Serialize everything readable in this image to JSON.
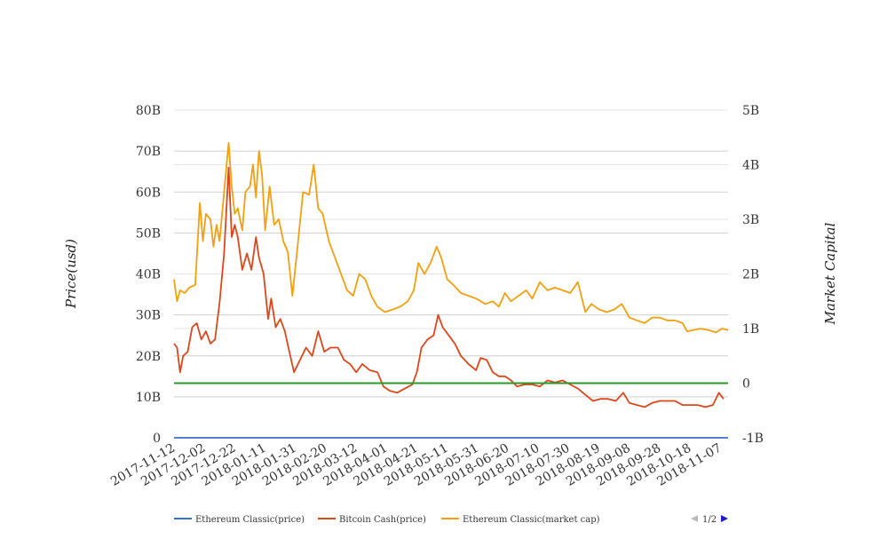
{
  "chart_data": {
    "type": "line",
    "ylabel_left": "Price(usd)",
    "ylabel_right": "Market Capital",
    "left_axis": {
      "min": 0,
      "max": 80000000000,
      "ticks": [
        "0",
        "10B",
        "20B",
        "30B",
        "40B",
        "50B",
        "60B",
        "70B",
        "80B"
      ]
    },
    "right_axis": {
      "min": -1000000000,
      "max": 5000000000,
      "ticks": [
        "-1B",
        "0",
        "1B",
        "2B",
        "3B",
        "4B",
        "5B"
      ]
    },
    "x_start": "2017-11-12",
    "x_end": "2018-11-12",
    "x_ticks": [
      "2017-11-12",
      "2017-12-02",
      "2017-12-22",
      "2018-01-11",
      "2018-01-31",
      "2018-02-20",
      "2018-03-12",
      "2018-04-01",
      "2018-04-21",
      "2018-05-11",
      "2018-05-31",
      "2018-06-20",
      "2018-07-10",
      "2018-07-30",
      "2018-08-19",
      "2018-09-08",
      "2018-09-28",
      "2018-10-18",
      "2018-11-07"
    ],
    "grid": true,
    "legend_position": "bottom",
    "series": [
      {
        "name": "Ethereum Classic(price)",
        "axis": "left",
        "color": "#3a6fce",
        "points": [
          [
            "2017-11-12",
            35
          ],
          [
            "2018-02-20",
            35
          ],
          [
            "2018-06-20",
            20
          ],
          [
            "2018-11-12",
            15
          ]
        ]
      },
      {
        "name": "Bitcoin Cash(price)",
        "axis": "left",
        "color": "#d8481c",
        "points": [
          [
            "2017-11-12",
            23000000000.0
          ],
          [
            "2017-11-14",
            22000000000.0
          ],
          [
            "2017-11-16",
            16000000000.0
          ],
          [
            "2017-11-18",
            20000000000.0
          ],
          [
            "2017-11-21",
            21000000000.0
          ],
          [
            "2017-11-24",
            27000000000.0
          ],
          [
            "2017-11-27",
            28000000000.0
          ],
          [
            "2017-11-30",
            24000000000.0
          ],
          [
            "2017-12-03",
            26000000000.0
          ],
          [
            "2017-12-06",
            23000000000.0
          ],
          [
            "2017-12-09",
            24000000000.0
          ],
          [
            "2017-12-12",
            33000000000.0
          ],
          [
            "2017-12-15",
            45000000000.0
          ],
          [
            "2017-12-18",
            66000000000.0
          ],
          [
            "2017-12-20",
            49000000000.0
          ],
          [
            "2017-12-22",
            52000000000.0
          ],
          [
            "2017-12-24",
            49000000000.0
          ],
          [
            "2017-12-27",
            41000000000.0
          ],
          [
            "2017-12-30",
            45000000000.0
          ],
          [
            "2018-01-02",
            41000000000.0
          ],
          [
            "2018-01-05",
            49000000000.0
          ],
          [
            "2018-01-07",
            44000000000.0
          ],
          [
            "2018-01-10",
            40000000000.0
          ],
          [
            "2018-01-13",
            29000000000.0
          ],
          [
            "2018-01-15",
            34000000000.0
          ],
          [
            "2018-01-18",
            27000000000.0
          ],
          [
            "2018-01-21",
            29000000000.0
          ],
          [
            "2018-01-24",
            26000000000.0
          ],
          [
            "2018-01-27",
            21000000000.0
          ],
          [
            "2018-01-30",
            16000000000.0
          ],
          [
            "2018-02-03",
            19000000000.0
          ],
          [
            "2018-02-07",
            22000000000.0
          ],
          [
            "2018-02-11",
            20000000000.0
          ],
          [
            "2018-02-15",
            26000000000.0
          ],
          [
            "2018-02-19",
            21000000000.0
          ],
          [
            "2018-02-23",
            22000000000.0
          ],
          [
            "2018-02-28",
            22000000000.0
          ],
          [
            "2018-03-04",
            19000000000.0
          ],
          [
            "2018-03-08",
            18000000000.0
          ],
          [
            "2018-03-12",
            16000000000.0
          ],
          [
            "2018-03-16",
            18000000000.0
          ],
          [
            "2018-03-21",
            16500000000.0
          ],
          [
            "2018-03-26",
            16000000000.0
          ],
          [
            "2018-03-30",
            12500000000.0
          ],
          [
            "2018-04-03",
            11500000000.0
          ],
          [
            "2018-04-08",
            11000000000.0
          ],
          [
            "2018-04-13",
            12000000000.0
          ],
          [
            "2018-04-18",
            13000000000.0
          ],
          [
            "2018-04-21",
            16000000000.0
          ],
          [
            "2018-04-24",
            22000000000.0
          ],
          [
            "2018-04-28",
            24000000000.0
          ],
          [
            "2018-05-02",
            25000000000.0
          ],
          [
            "2018-05-05",
            30000000000.0
          ],
          [
            "2018-05-08",
            27000000000.0
          ],
          [
            "2018-05-12",
            25000000000.0
          ],
          [
            "2018-05-16",
            23000000000.0
          ],
          [
            "2018-05-20",
            20000000000.0
          ],
          [
            "2018-05-25",
            18000000000.0
          ],
          [
            "2018-05-30",
            16500000000.0
          ],
          [
            "2018-06-02",
            19500000000.0
          ],
          [
            "2018-06-06",
            19000000000.0
          ],
          [
            "2018-06-10",
            16000000000.0
          ],
          [
            "2018-06-14",
            15000000000.0
          ],
          [
            "2018-06-18",
            15000000000.0
          ],
          [
            "2018-06-22",
            14000000000.0
          ],
          [
            "2018-06-26",
            12500000000.0
          ],
          [
            "2018-07-01",
            13000000000.0
          ],
          [
            "2018-07-06",
            13000000000.0
          ],
          [
            "2018-07-11",
            12500000000.0
          ],
          [
            "2018-07-16",
            14000000000.0
          ],
          [
            "2018-07-21",
            13500000000.0
          ],
          [
            "2018-07-26",
            14000000000.0
          ],
          [
            "2018-07-31",
            13000000000.0
          ],
          [
            "2018-08-05",
            12000000000.0
          ],
          [
            "2018-08-10",
            10500000000.0
          ],
          [
            "2018-08-15",
            9000000000.0
          ],
          [
            "2018-08-20",
            9500000000.0
          ],
          [
            "2018-08-25",
            9500000000.0
          ],
          [
            "2018-08-30",
            9000000000.0
          ],
          [
            "2018-09-04",
            11000000000.0
          ],
          [
            "2018-09-08",
            8500000000.0
          ],
          [
            "2018-09-13",
            8000000000.0
          ],
          [
            "2018-09-18",
            7500000000.0
          ],
          [
            "2018-09-23",
            8500000000.0
          ],
          [
            "2018-09-28",
            9000000000.0
          ],
          [
            "2018-10-03",
            9000000000.0
          ],
          [
            "2018-10-08",
            9000000000.0
          ],
          [
            "2018-10-13",
            8000000000.0
          ],
          [
            "2018-10-18",
            8000000000.0
          ],
          [
            "2018-10-23",
            8000000000.0
          ],
          [
            "2018-10-28",
            7500000000.0
          ],
          [
            "2018-11-02",
            8000000000.0
          ],
          [
            "2018-11-06",
            11000000000.0
          ],
          [
            "2018-11-09",
            9500000000.0
          ]
        ]
      },
      {
        "name": "Ethereum Classic(market cap)",
        "axis": "right",
        "color": "#f0a010",
        "points": [
          [
            "2017-11-12",
            1900000000.0
          ],
          [
            "2017-11-14",
            1500000000.0
          ],
          [
            "2017-11-16",
            1700000000.0
          ],
          [
            "2017-11-19",
            1650000000.0
          ],
          [
            "2017-11-22",
            1750000000.0
          ],
          [
            "2017-11-26",
            1800000000.0
          ],
          [
            "2017-11-29",
            3300000000.0
          ],
          [
            "2017-12-01",
            2600000000.0
          ],
          [
            "2017-12-03",
            3100000000.0
          ],
          [
            "2017-12-06",
            3000000000.0
          ],
          [
            "2017-12-08",
            2500000000.0
          ],
          [
            "2017-12-10",
            2900000000.0
          ],
          [
            "2017-12-12",
            2600000000.0
          ],
          [
            "2017-12-15",
            3500000000.0
          ],
          [
            "2017-12-18",
            4400000000.0
          ],
          [
            "2017-12-20",
            3600000000.0
          ],
          [
            "2017-12-22",
            3100000000.0
          ],
          [
            "2017-12-24",
            3200000000.0
          ],
          [
            "2017-12-27",
            2800000000.0
          ],
          [
            "2017-12-29",
            3500000000.0
          ],
          [
            "2018-01-01",
            3600000000.0
          ],
          [
            "2018-01-03",
            4000000000.0
          ],
          [
            "2018-01-05",
            3400000000.0
          ],
          [
            "2018-01-07",
            4250000000.0
          ],
          [
            "2018-01-09",
            3800000000.0
          ],
          [
            "2018-01-11",
            2800000000.0
          ],
          [
            "2018-01-14",
            3600000000.0
          ],
          [
            "2018-01-17",
            2900000000.0
          ],
          [
            "2018-01-20",
            3000000000.0
          ],
          [
            "2018-01-23",
            2600000000.0
          ],
          [
            "2018-01-26",
            2400000000.0
          ],
          [
            "2018-01-29",
            1600000000.0
          ],
          [
            "2018-02-01",
            2400000000.0
          ],
          [
            "2018-02-05",
            3500000000.0
          ],
          [
            "2018-02-09",
            3450000000.0
          ],
          [
            "2018-02-12",
            4000000000.0
          ],
          [
            "2018-02-15",
            3200000000.0
          ],
          [
            "2018-02-18",
            3100000000.0
          ],
          [
            "2018-02-22",
            2600000000.0
          ],
          [
            "2018-02-26",
            2300000000.0
          ],
          [
            "2018-03-02",
            2000000000.0
          ],
          [
            "2018-03-06",
            1700000000.0
          ],
          [
            "2018-03-10",
            1600000000.0
          ],
          [
            "2018-03-14",
            2000000000.0
          ],
          [
            "2018-03-18",
            1900000000.0
          ],
          [
            "2018-03-22",
            1600000000.0
          ],
          [
            "2018-03-26",
            1400000000.0
          ],
          [
            "2018-03-31",
            1300000000.0
          ],
          [
            "2018-04-05",
            1350000000.0
          ],
          [
            "2018-04-10",
            1400000000.0
          ],
          [
            "2018-04-15",
            1500000000.0
          ],
          [
            "2018-04-19",
            1700000000.0
          ],
          [
            "2018-04-22",
            2200000000.0
          ],
          [
            "2018-04-26",
            2000000000.0
          ],
          [
            "2018-04-30",
            2200000000.0
          ],
          [
            "2018-05-04",
            2500000000.0
          ],
          [
            "2018-05-07",
            2300000000.0
          ],
          [
            "2018-05-11",
            1900000000.0
          ],
          [
            "2018-05-15",
            1800000000.0
          ],
          [
            "2018-05-20",
            1650000000.0
          ],
          [
            "2018-05-25",
            1600000000.0
          ],
          [
            "2018-05-30",
            1550000000.0
          ],
          [
            "2018-06-05",
            1450000000.0
          ],
          [
            "2018-06-10",
            1500000000.0
          ],
          [
            "2018-06-14",
            1400000000.0
          ],
          [
            "2018-06-18",
            1650000000.0
          ],
          [
            "2018-06-22",
            1500000000.0
          ],
          [
            "2018-06-27",
            1600000000.0
          ],
          [
            "2018-07-02",
            1700000000.0
          ],
          [
            "2018-07-06",
            1550000000.0
          ],
          [
            "2018-07-11",
            1850000000.0
          ],
          [
            "2018-07-16",
            1700000000.0
          ],
          [
            "2018-07-21",
            1750000000.0
          ],
          [
            "2018-07-26",
            1700000000.0
          ],
          [
            "2018-07-31",
            1650000000.0
          ],
          [
            "2018-08-05",
            1850000000.0
          ],
          [
            "2018-08-10",
            1300000000.0
          ],
          [
            "2018-08-14",
            1450000000.0
          ],
          [
            "2018-08-19",
            1350000000.0
          ],
          [
            "2018-08-24",
            1300000000.0
          ],
          [
            "2018-08-29",
            1350000000.0
          ],
          [
            "2018-09-03",
            1450000000.0
          ],
          [
            "2018-09-08",
            1200000000.0
          ],
          [
            "2018-09-13",
            1150000000.0
          ],
          [
            "2018-09-18",
            1100000000.0
          ],
          [
            "2018-09-23",
            1200000000.0
          ],
          [
            "2018-09-28",
            1200000000.0
          ],
          [
            "2018-10-03",
            1150000000.0
          ],
          [
            "2018-10-08",
            1150000000.0
          ],
          [
            "2018-10-13",
            1100000000.0
          ],
          [
            "2018-10-16",
            950000000.0
          ],
          [
            "2018-10-20",
            970000000.0
          ],
          [
            "2018-10-25",
            1000000000.0
          ],
          [
            "2018-10-30",
            970000000.0
          ],
          [
            "2018-11-04",
            930000000.0
          ],
          [
            "2018-11-08",
            1000000000.0
          ],
          [
            "2018-11-12",
            970000000.0
          ]
        ]
      },
      {
        "axis": "right",
        "color": "#2a9a2a",
        "points": [
          [
            "2017-11-12",
            0
          ],
          [
            "2018-11-12",
            0
          ]
        ]
      }
    ]
  },
  "legend": {
    "items": [
      {
        "label": "Ethereum Classic(price)",
        "color": "#3a6fce"
      },
      {
        "label": "Bitcoin Cash(price)",
        "color": "#d8481c"
      },
      {
        "label": "Ethereum Classic(market cap)",
        "color": "#f0a010"
      }
    ],
    "pager": "1/2",
    "prev_color": "#bbbbbb",
    "next_color": "#1a1acc"
  }
}
